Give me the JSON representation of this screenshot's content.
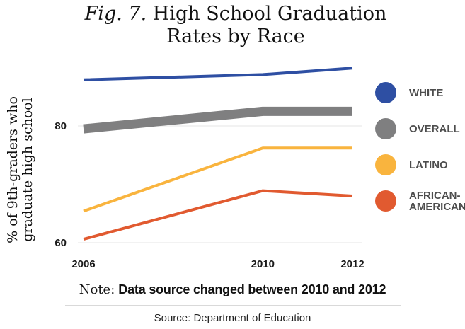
{
  "chart_data": {
    "type": "line",
    "title_prefix": "Fig. 7.",
    "title": "High School Graduation Rates by Race",
    "ylabel": "% of 9th-graders who graduate high school",
    "xlabel": "",
    "x": [
      2006,
      2010,
      2012
    ],
    "x_tick_labels": [
      "2006",
      "2010",
      "2012"
    ],
    "y_ticks": [
      60,
      80
    ],
    "y_tick_labels": [
      "60",
      "80"
    ],
    "ylim": [
      60,
      90
    ],
    "grid": false,
    "legend_position": "right",
    "series": [
      {
        "name": "WHITE",
        "color": "#2e4fa3",
        "values": [
          87.9,
          88.8,
          89.9
        ],
        "line_width": "thin"
      },
      {
        "name": "OVERALL",
        "color": "#7f7f80",
        "values": [
          79.5,
          82.5,
          82.5
        ],
        "line_width": "thick"
      },
      {
        "name": "LATINO",
        "color": "#f9b43e",
        "values": [
          65.4,
          76.2,
          76.2
        ],
        "line_width": "thin"
      },
      {
        "name": "AFRICAN-AMERICAN",
        "color": "#e15a30",
        "values": [
          60.6,
          68.9,
          68.0
        ],
        "line_width": "thin"
      }
    ],
    "note_label": "Note:",
    "note": "Data source changed between 2010 and 2012",
    "source": "Source: Department of Education"
  }
}
